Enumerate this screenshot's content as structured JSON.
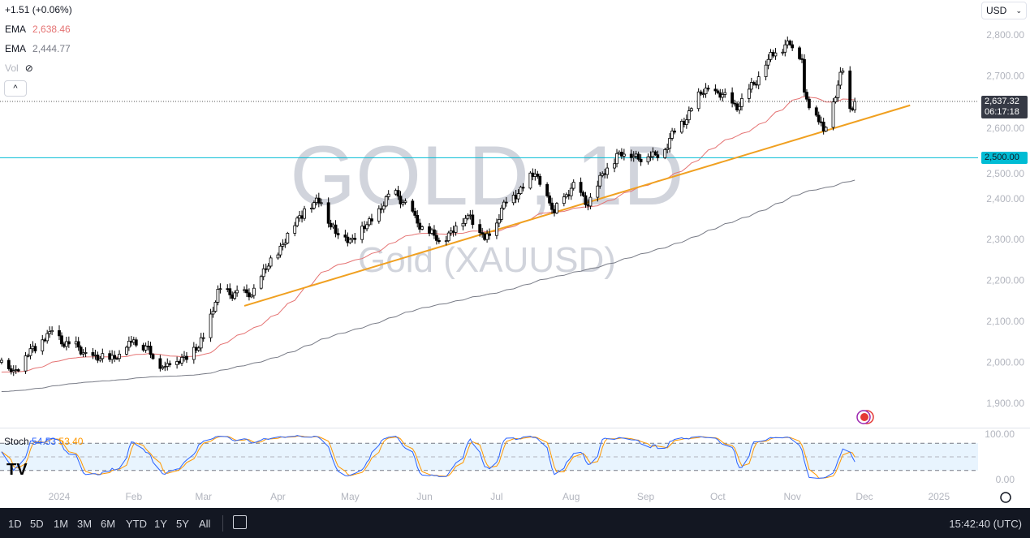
{
  "legend": {
    "change": "+1.51 (+0.06%)",
    "ema1_label": "EMA",
    "ema1_value": "2,638.46",
    "ema2_label": "EMA",
    "ema2_value": "2,444.77",
    "vol_label": "Vol",
    "collapse": "^"
  },
  "currency": "USD",
  "watermark": {
    "symbol": "GOLD, 1D",
    "name": "Gold (XAUUSD)"
  },
  "price_labels": {
    "last": "2,637.32",
    "countdown": "06:17:18",
    "level": "2,500.00"
  },
  "stoch": {
    "label": "Stoch",
    "k": "54.53",
    "d": "53.40",
    "ticks": [
      "100.00",
      "0.00"
    ]
  },
  "bottom_bar": {
    "ranges": [
      "1D",
      "5D",
      "1M",
      "3M",
      "6M",
      "YTD",
      "1Y",
      "5Y",
      "All"
    ],
    "clock": "15:42:40 (UTC)"
  },
  "colors": {
    "ema_fast": "#e57373",
    "ema_slow": "#787b86",
    "trendline": "#f0a020",
    "level": "#00bcd4",
    "stoch_k": "#2962ff",
    "stoch_d": "#ff9800",
    "bottom_bg": "#131722"
  },
  "chart_data": {
    "type": "candlestick",
    "symbol": "XAUUSD",
    "interval": "1D",
    "ylim": [
      1880,
      2830
    ],
    "price_ticks": [
      "2,800.00",
      "2,700.00",
      "2,600.00",
      "2,500.00",
      "2,400.00",
      "2,300.00",
      "2,200.00",
      "2,100.00",
      "2,000.00",
      "1,900.00"
    ],
    "price_tick_values": [
      2800,
      2700,
      2600,
      2500,
      2400,
      2300,
      2200,
      2100,
      2000,
      1900
    ],
    "x_ticks": [
      {
        "label": "2024",
        "date": "2024-01-01"
      },
      {
        "label": "Feb",
        "date": "2024-02-01"
      },
      {
        "label": "Mar",
        "date": "2024-03-01"
      },
      {
        "label": "Apr",
        "date": "2024-04-01"
      },
      {
        "label": "May",
        "date": "2024-05-01"
      },
      {
        "label": "Jun",
        "date": "2024-06-01"
      },
      {
        "label": "Jul",
        "date": "2024-07-01"
      },
      {
        "label": "Aug",
        "date": "2024-08-01"
      },
      {
        "label": "Sep",
        "date": "2024-09-01"
      },
      {
        "label": "Oct",
        "date": "2024-10-01"
      },
      {
        "label": "Nov",
        "date": "2024-11-01"
      },
      {
        "label": "Dec",
        "date": "2024-12-01"
      },
      {
        "label": "2025",
        "date": "2025-01-01"
      }
    ],
    "close_path": [
      [
        "2023-12-08",
        2005
      ],
      [
        "2023-12-13",
        1980
      ],
      [
        "2023-12-28",
        2075
      ],
      [
        "2024-01-05",
        2045
      ],
      [
        "2024-01-17",
        2005
      ],
      [
        "2024-01-26",
        2020
      ],
      [
        "2024-02-01",
        2055
      ],
      [
        "2024-02-14",
        1990
      ],
      [
        "2024-02-28",
        2035
      ],
      [
        "2024-03-08",
        2180
      ],
      [
        "2024-03-20",
        2160
      ],
      [
        "2024-03-28",
        2235
      ],
      [
        "2024-04-12",
        2375
      ],
      [
        "2024-04-19",
        2390
      ],
      [
        "2024-04-25",
        2315
      ],
      [
        "2024-05-03",
        2300
      ],
      [
        "2024-05-20",
        2420
      ],
      [
        "2024-05-29",
        2340
      ],
      [
        "2024-06-07",
        2295
      ],
      [
        "2024-06-20",
        2360
      ],
      [
        "2024-06-26",
        2300
      ],
      [
        "2024-07-05",
        2390
      ],
      [
        "2024-07-17",
        2460
      ],
      [
        "2024-07-25",
        2365
      ],
      [
        "2024-08-02",
        2440
      ],
      [
        "2024-08-07",
        2385
      ],
      [
        "2024-08-20",
        2510
      ],
      [
        "2024-09-06",
        2500
      ],
      [
        "2024-09-20",
        2620
      ],
      [
        "2024-09-26",
        2670
      ],
      [
        "2024-10-10",
        2625
      ],
      [
        "2024-10-22",
        2740
      ],
      [
        "2024-10-30",
        2785
      ],
      [
        "2024-11-05",
        2740
      ],
      [
        "2024-11-06",
        2660
      ],
      [
        "2024-11-14",
        2565
      ],
      [
        "2024-11-22",
        2712
      ],
      [
        "2024-11-25",
        2620
      ],
      [
        "2024-11-27",
        2637.32
      ]
    ],
    "last_price": 2637.32,
    "horizontal_level": 2500,
    "trendline": [
      [
        "2024-03-18",
        2138
      ],
      [
        "2024-12-20",
        2628
      ]
    ],
    "ema_fast_last": 2638.46,
    "ema_slow_last": 2444.77,
    "stoch_last": {
      "k": 54.53,
      "d": 53.4
    },
    "stoch_bands": [
      80,
      50,
      20
    ]
  }
}
